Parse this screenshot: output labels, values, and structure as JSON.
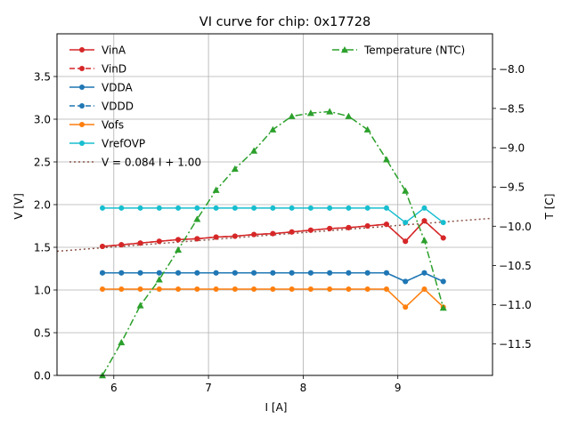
{
  "chart_data": {
    "type": "line",
    "title": "VI curve for chip: 0x17728",
    "xlabel": "I [A]",
    "ylabel_left": "V [V]",
    "ylabel_right": "T [C]",
    "xlim": [
      5.4,
      10.0
    ],
    "ylim_left": [
      0.0,
      4.0
    ],
    "ylim_right": [
      -11.9,
      -7.55
    ],
    "grid": true,
    "x_ticks": [
      {
        "value": 6,
        "label": "6"
      },
      {
        "value": 7,
        "label": "7"
      },
      {
        "value": 8,
        "label": "8"
      },
      {
        "value": 9,
        "label": "9"
      }
    ],
    "y_ticks_left": [
      {
        "value": 0.0,
        "label": "0.0"
      },
      {
        "value": 0.5,
        "label": "0.5"
      },
      {
        "value": 1.0,
        "label": "1.0"
      },
      {
        "value": 1.5,
        "label": "1.5"
      },
      {
        "value": 2.0,
        "label": "2.0"
      },
      {
        "value": 2.5,
        "label": "2.5"
      },
      {
        "value": 3.0,
        "label": "3.0"
      },
      {
        "value": 3.5,
        "label": "3.5"
      }
    ],
    "y_ticks_right": [
      {
        "value": -11.5,
        "label": "−11.5"
      },
      {
        "value": -11.0,
        "label": "−11.0"
      },
      {
        "value": -10.5,
        "label": "−10.5"
      },
      {
        "value": -10.0,
        "label": "−10.0"
      },
      {
        "value": -9.5,
        "label": "−9.5"
      },
      {
        "value": -9.0,
        "label": "−9.0"
      },
      {
        "value": -8.5,
        "label": "−8.5"
      },
      {
        "value": -8.0,
        "label": "−8.0"
      }
    ],
    "x": [
      5.88,
      6.08,
      6.28,
      6.48,
      6.68,
      6.88,
      7.08,
      7.28,
      7.48,
      7.68,
      7.88,
      8.08,
      8.28,
      8.48,
      8.68,
      8.88,
      9.08,
      9.28,
      9.48
    ],
    "series": [
      {
        "name": "VinA",
        "axis": "left",
        "color": "#d62728",
        "dash": "",
        "marker": "circle",
        "values": [
          1.51,
          1.53,
          1.55,
          1.57,
          1.59,
          1.6,
          1.62,
          1.63,
          1.65,
          1.66,
          1.68,
          1.7,
          1.72,
          1.73,
          1.75,
          1.77,
          1.57,
          1.81,
          1.61
        ]
      },
      {
        "name": "VinD",
        "axis": "left",
        "color": "#d62728",
        "dash": "6,3",
        "marker": "circle",
        "values": [
          1.51,
          1.53,
          1.55,
          1.57,
          1.59,
          1.6,
          1.62,
          1.63,
          1.65,
          1.66,
          1.68,
          1.7,
          1.72,
          1.73,
          1.75,
          1.77,
          1.57,
          1.81,
          1.61
        ]
      },
      {
        "name": "VDDA",
        "axis": "left",
        "color": "#1f77b4",
        "dash": "",
        "marker": "circle",
        "values": [
          1.2,
          1.2,
          1.2,
          1.2,
          1.2,
          1.2,
          1.2,
          1.2,
          1.2,
          1.2,
          1.2,
          1.2,
          1.2,
          1.2,
          1.2,
          1.2,
          1.1,
          1.2,
          1.1
        ]
      },
      {
        "name": "VDDD",
        "axis": "left",
        "color": "#1f77b4",
        "dash": "6,3",
        "marker": "circle",
        "values": [
          1.2,
          1.2,
          1.2,
          1.2,
          1.2,
          1.2,
          1.2,
          1.2,
          1.2,
          1.2,
          1.2,
          1.2,
          1.2,
          1.2,
          1.2,
          1.2,
          1.1,
          1.2,
          1.1
        ]
      },
      {
        "name": "Vofs",
        "axis": "left",
        "color": "#ff7f0e",
        "dash": "",
        "marker": "circle",
        "values": [
          1.01,
          1.01,
          1.01,
          1.01,
          1.01,
          1.01,
          1.01,
          1.01,
          1.01,
          1.01,
          1.01,
          1.01,
          1.01,
          1.01,
          1.01,
          1.01,
          0.8,
          1.01,
          0.8
        ]
      },
      {
        "name": "VrefOVP",
        "axis": "left",
        "color": "#17becf",
        "dash": "",
        "marker": "circle",
        "values": [
          1.96,
          1.96,
          1.96,
          1.96,
          1.96,
          1.96,
          1.96,
          1.96,
          1.96,
          1.96,
          1.96,
          1.96,
          1.96,
          1.96,
          1.96,
          1.96,
          1.79,
          1.96,
          1.79
        ]
      },
      {
        "name": "Temperature (NTC)",
        "axis": "right",
        "color": "#2ca02c",
        "dash": "8,3,2,3",
        "marker": "triangle",
        "values": [
          -11.9,
          -11.48,
          -11.01,
          -10.68,
          -10.3,
          -9.91,
          -9.54,
          -9.27,
          -9.04,
          -8.77,
          -8.6,
          -8.56,
          -8.54,
          -8.6,
          -8.77,
          -9.15,
          -9.55,
          -10.18,
          -11.04
        ]
      }
    ],
    "fit_line": {
      "name": "V = 0.084 I + 1.00",
      "slope": 0.084,
      "intercept": 1.0,
      "color": "#8c564b",
      "dash": "2,3"
    },
    "legend_left": [
      "VinA",
      "VinD",
      "VDDA",
      "VDDD",
      "Vofs",
      "VrefOVP",
      "V = 0.084 I + 1.00"
    ],
    "legend_right": [
      "Temperature (NTC)"
    ],
    "legend_placement": "top-left and top-right"
  }
}
